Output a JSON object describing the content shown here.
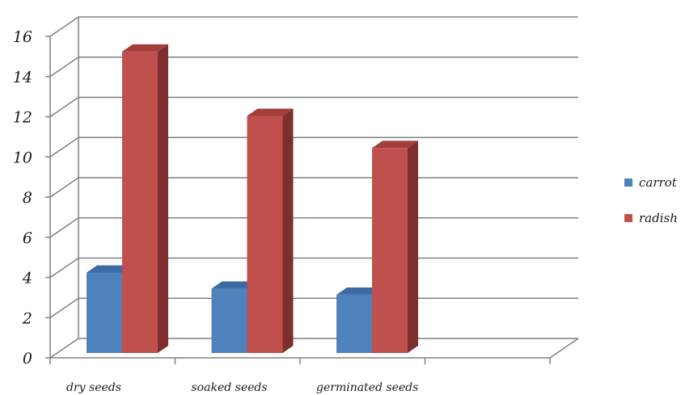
{
  "chart_data": {
    "type": "bar",
    "categories": [
      "dry seeds",
      "soaked seeds",
      "germinated seeds",
      ""
    ],
    "series": [
      {
        "name": "carrot",
        "values": [
          4.0,
          3.2,
          2.9,
          null
        ]
      },
      {
        "name": "radish",
        "values": [
          15.0,
          11.8,
          10.2,
          null
        ]
      }
    ],
    "ylim": [
      0,
      16
    ],
    "yticks": [
      "0",
      "2",
      "4",
      "6",
      "8",
      "10",
      "12",
      "14",
      "16"
    ],
    "title": "",
    "xlabel": "",
    "ylabel": "",
    "grid": true,
    "legend_position": "right",
    "three_d": true
  },
  "colors": {
    "carrot_front": "#4f81bd",
    "carrot_side": "#2f5584",
    "carrot_top": "#3c6aa3",
    "radish_front": "#c0504d",
    "radish_side": "#7e2f2d",
    "radish_top": "#a23f3c",
    "grid": "#808080"
  }
}
